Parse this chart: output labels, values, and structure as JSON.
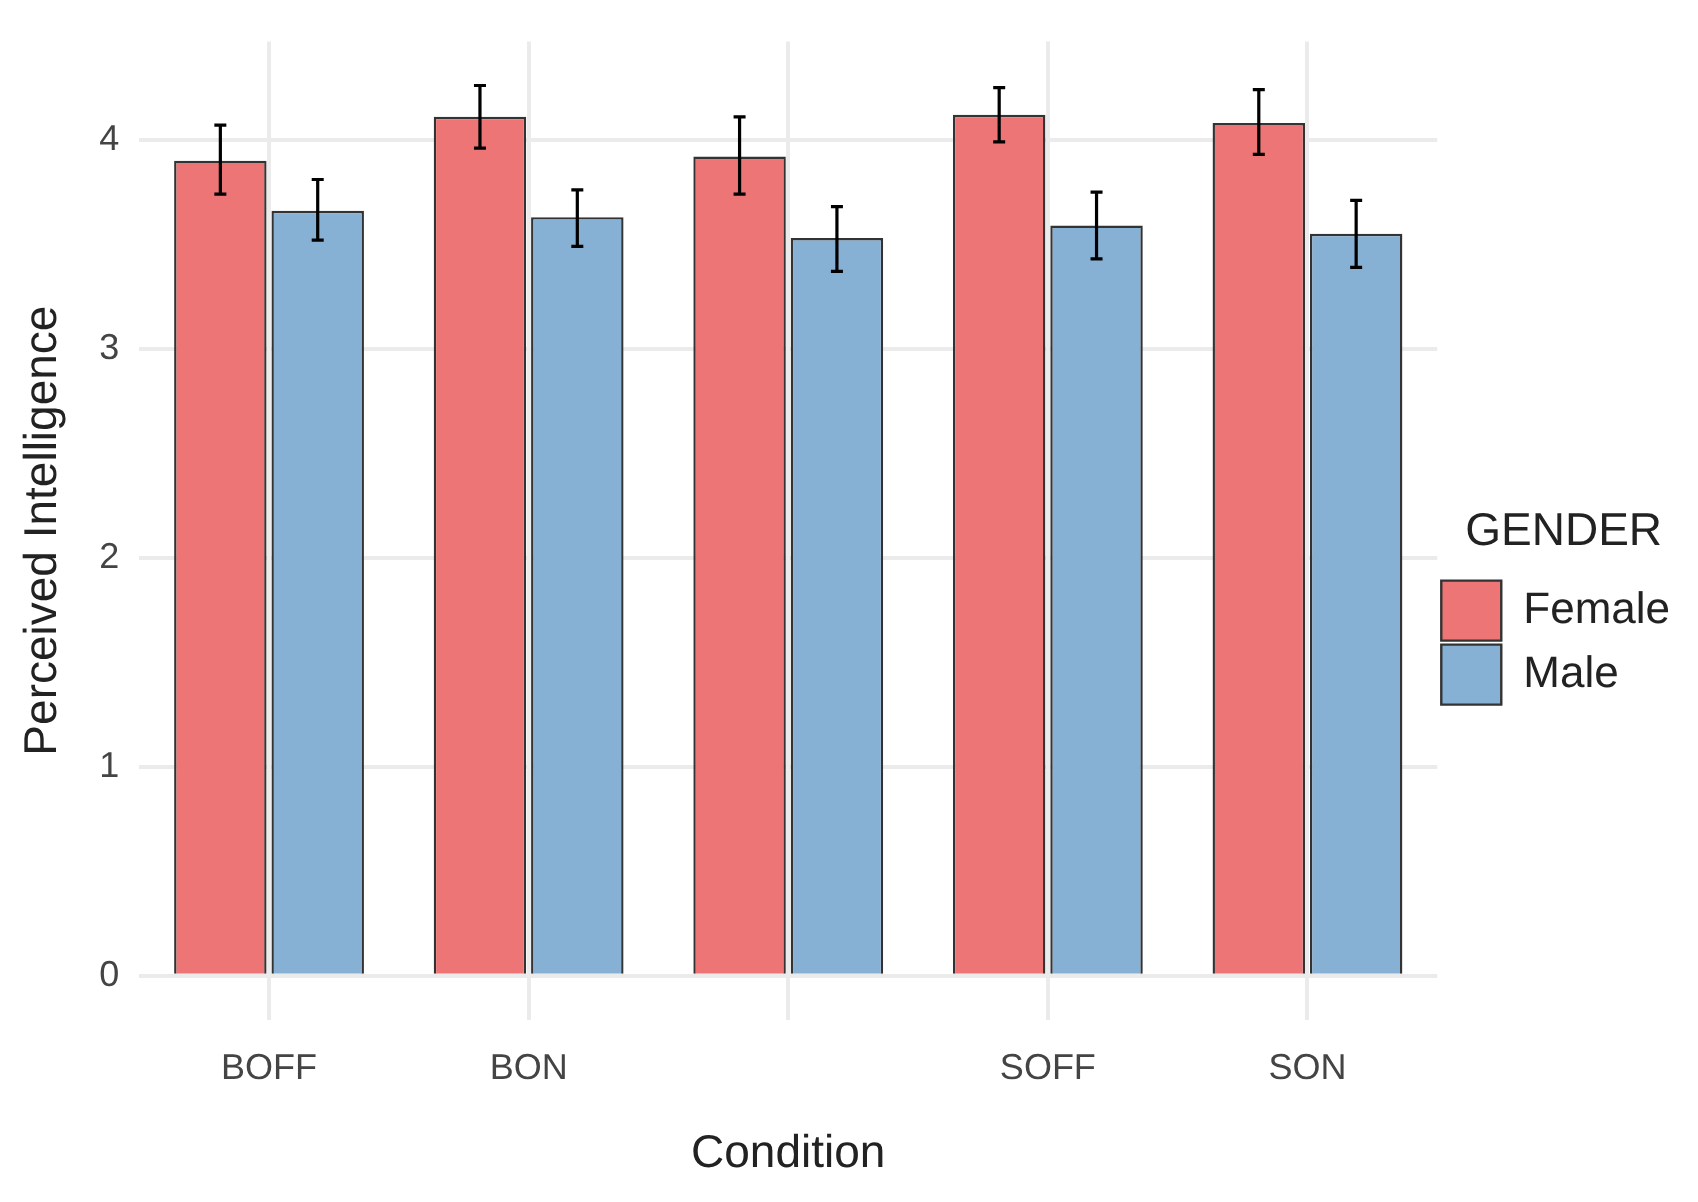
{
  "chart_data": {
    "type": "bar",
    "xlabel": "Condition",
    "ylabel": "Perceived Intelligence",
    "legend_title": "GENDER",
    "categories": [
      "BOFF",
      "BON",
      null,
      "SOFF",
      "SON"
    ],
    "series": [
      {
        "name": "Female",
        "color": "#ee7576",
        "values": [
          3.9,
          4.11,
          3.92,
          4.12,
          4.08
        ],
        "errors": [
          [
            3.74,
            4.07
          ],
          [
            3.96,
            4.26
          ],
          [
            3.74,
            4.11
          ],
          [
            3.99,
            4.25
          ],
          [
            3.93,
            4.24
          ]
        ]
      },
      {
        "name": "Male",
        "color": "#86b0d4",
        "values": [
          3.66,
          3.63,
          3.53,
          3.59,
          3.55
        ],
        "errors": [
          [
            3.52,
            3.81
          ],
          [
            3.49,
            3.76
          ],
          [
            3.37,
            3.68
          ],
          [
            3.43,
            3.75
          ],
          [
            3.39,
            3.71
          ]
        ]
      }
    ],
    "ylim": [
      -0.21,
      4.47
    ],
    "yticks": [
      0,
      1,
      2,
      3,
      4
    ],
    "grid": true,
    "legend": "right"
  }
}
